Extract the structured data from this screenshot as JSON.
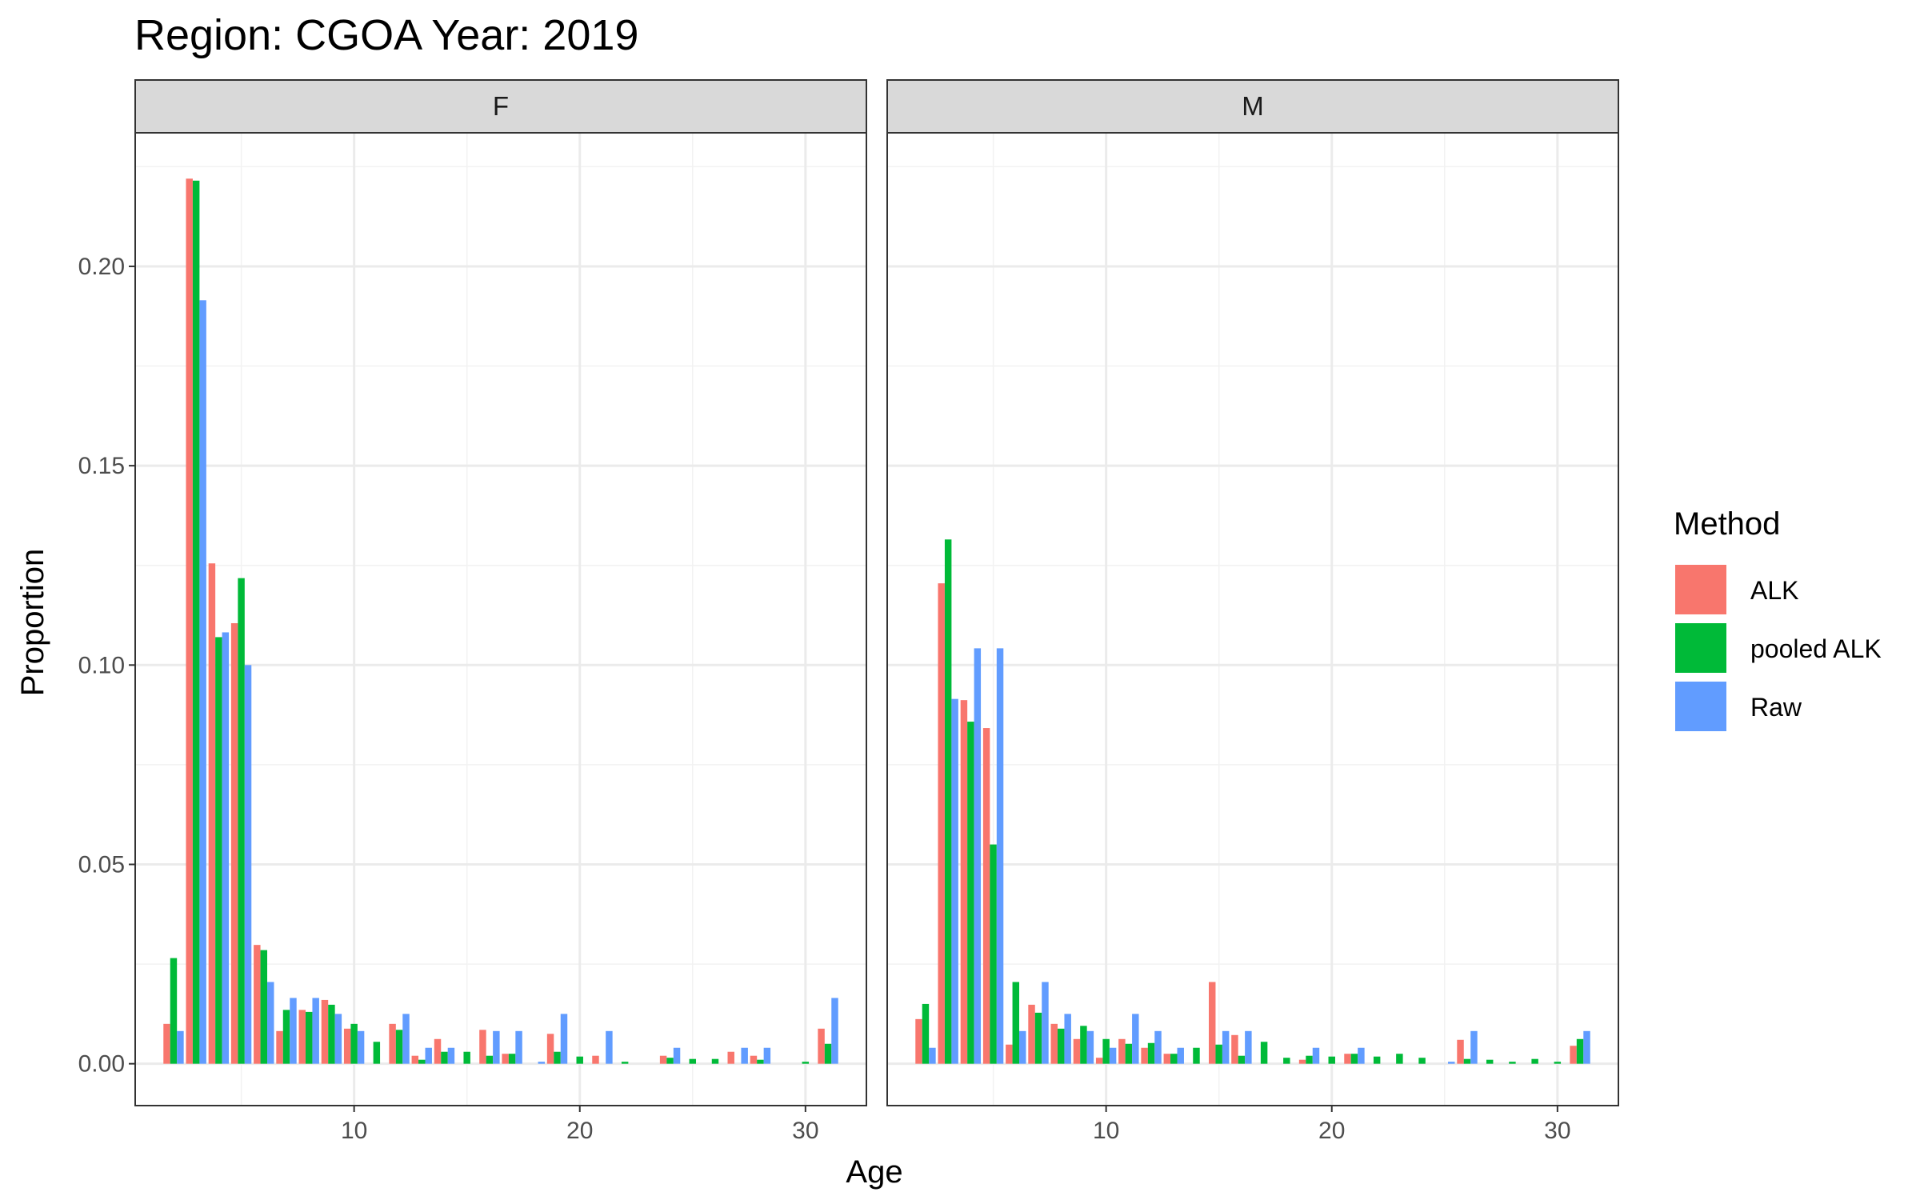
{
  "chart_data": {
    "type": "bar",
    "title": "Region: CGOA Year: 2019",
    "xlabel": "Age",
    "ylabel": "Proportion",
    "xlim": [
      0.3,
      32.7
    ],
    "ylim": [
      -0.0105,
      0.2335
    ],
    "x_ticks": [
      10,
      20,
      30
    ],
    "y_ticks": [
      0.0,
      0.05,
      0.1,
      0.15,
      0.2
    ],
    "x_tick_labels": [
      "10",
      "20",
      "30"
    ],
    "y_tick_labels": [
      "0.00",
      "0.05",
      "0.10",
      "0.15",
      "0.20"
    ],
    "grid": true,
    "legend": {
      "title": "Method",
      "position": "right",
      "entries": [
        "ALK",
        "pooled ALK",
        "Raw"
      ]
    },
    "colors": {
      "ALK": "#F8766D",
      "pooled ALK": "#00BA38",
      "Raw": "#619CFF"
    },
    "facets": [
      {
        "label": "F",
        "series": [
          {
            "name": "ALK",
            "points": [
              [
                2,
                0.01
              ],
              [
                3,
                0.222
              ],
              [
                4,
                0.1255
              ],
              [
                5,
                0.1105
              ],
              [
                6,
                0.0298
              ],
              [
                7,
                0.0082
              ],
              [
                8,
                0.0135
              ],
              [
                9,
                0.016
              ],
              [
                10,
                0.0088
              ],
              [
                12,
                0.01
              ],
              [
                13,
                0.002
              ],
              [
                14,
                0.0062
              ],
              [
                16,
                0.0085
              ],
              [
                17,
                0.0025
              ],
              [
                19,
                0.0075
              ],
              [
                21,
                0.002
              ],
              [
                24,
                0.002
              ],
              [
                27,
                0.003
              ],
              [
                28,
                0.002
              ],
              [
                31,
                0.0088
              ]
            ]
          },
          {
            "name": "pooled ALK",
            "points": [
              [
                2,
                0.0265
              ],
              [
                3,
                0.2215
              ],
              [
                4,
                0.107
              ],
              [
                5,
                0.1218
              ],
              [
                6,
                0.0285
              ],
              [
                7,
                0.0135
              ],
              [
                8,
                0.013
              ],
              [
                9,
                0.0148
              ],
              [
                10,
                0.01
              ],
              [
                11,
                0.0055
              ],
              [
                12,
                0.0085
              ],
              [
                13,
                0.001
              ],
              [
                14,
                0.003
              ],
              [
                15,
                0.003
              ],
              [
                16,
                0.002
              ],
              [
                17,
                0.0025
              ],
              [
                19,
                0.003
              ],
              [
                20,
                0.0018
              ],
              [
                22,
                0.0005
              ],
              [
                24,
                0.0015
              ],
              [
                25,
                0.0012
              ],
              [
                26,
                0.0012
              ],
              [
                28,
                0.001
              ],
              [
                30,
                0.0005
              ],
              [
                31,
                0.005
              ]
            ]
          },
          {
            "name": "Raw",
            "points": [
              [
                2,
                0.0082
              ],
              [
                3,
                0.1915
              ],
              [
                4,
                0.1082
              ],
              [
                5,
                0.1
              ],
              [
                6,
                0.0205
              ],
              [
                7,
                0.0165
              ],
              [
                8,
                0.0165
              ],
              [
                9,
                0.0125
              ],
              [
                10,
                0.0082
              ],
              [
                12,
                0.0125
              ],
              [
                13,
                0.004
              ],
              [
                14,
                0.004
              ],
              [
                16,
                0.0082
              ],
              [
                17,
                0.0082
              ],
              [
                18,
                0.0005
              ],
              [
                19,
                0.0125
              ],
              [
                21,
                0.0082
              ],
              [
                24,
                0.004
              ],
              [
                27,
                0.004
              ],
              [
                28,
                0.004
              ],
              [
                31,
                0.0165
              ]
            ]
          }
        ]
      },
      {
        "label": "M",
        "series": [
          {
            "name": "ALK",
            "points": [
              [
                2,
                0.0112
              ],
              [
                3,
                0.1205
              ],
              [
                4,
                0.0912
              ],
              [
                5,
                0.0842
              ],
              [
                6,
                0.0048
              ],
              [
                7,
                0.0148
              ],
              [
                8,
                0.01
              ],
              [
                9,
                0.0062
              ],
              [
                10,
                0.0015
              ],
              [
                11,
                0.0062
              ],
              [
                12,
                0.004
              ],
              [
                13,
                0.0025
              ],
              [
                15,
                0.0205
              ],
              [
                16,
                0.0072
              ],
              [
                19,
                0.001
              ],
              [
                21,
                0.0025
              ],
              [
                26,
                0.006
              ],
              [
                31,
                0.0045
              ]
            ]
          },
          {
            "name": "pooled ALK",
            "points": [
              [
                2,
                0.015
              ],
              [
                3,
                0.1315
              ],
              [
                4,
                0.0858
              ],
              [
                5,
                0.055
              ],
              [
                6,
                0.0205
              ],
              [
                7,
                0.0128
              ],
              [
                8,
                0.0088
              ],
              [
                9,
                0.0095
              ],
              [
                10,
                0.0062
              ],
              [
                11,
                0.005
              ],
              [
                12,
                0.0052
              ],
              [
                13,
                0.0025
              ],
              [
                14,
                0.004
              ],
              [
                15,
                0.0048
              ],
              [
                16,
                0.002
              ],
              [
                17,
                0.0055
              ],
              [
                18,
                0.0015
              ],
              [
                19,
                0.002
              ],
              [
                20,
                0.0018
              ],
              [
                21,
                0.0025
              ],
              [
                22,
                0.0018
              ],
              [
                23,
                0.0025
              ],
              [
                24,
                0.0015
              ],
              [
                26,
                0.0012
              ],
              [
                27,
                0.001
              ],
              [
                28,
                0.0005
              ],
              [
                29,
                0.0012
              ],
              [
                30,
                0.0005
              ],
              [
                31,
                0.0062
              ]
            ]
          },
          {
            "name": "Raw",
            "points": [
              [
                2,
                0.004
              ],
              [
                3,
                0.0915
              ],
              [
                4,
                0.1042
              ],
              [
                5,
                0.1042
              ],
              [
                6,
                0.0082
              ],
              [
                7,
                0.0205
              ],
              [
                8,
                0.0125
              ],
              [
                9,
                0.0082
              ],
              [
                10,
                0.004
              ],
              [
                11,
                0.0125
              ],
              [
                12,
                0.0082
              ],
              [
                13,
                0.004
              ],
              [
                15,
                0.0082
              ],
              [
                16,
                0.0082
              ],
              [
                19,
                0.004
              ],
              [
                21,
                0.004
              ],
              [
                25,
                0.0005
              ],
              [
                26,
                0.0082
              ],
              [
                31,
                0.0082
              ]
            ]
          }
        ]
      }
    ]
  }
}
